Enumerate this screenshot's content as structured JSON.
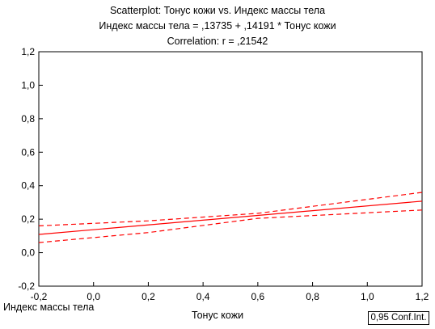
{
  "chart_data": {
    "type": "scatter",
    "title": "Scatterplot: Тонус кожи vs. Индекс массы тела",
    "subtitle": "Индекс массы тела = ,13735 + ,14191 * Тонус кожи",
    "correlation": "Correlation: r = ,21542",
    "xlabel": "Тонус кожи",
    "ylabel": "Индекс массы тела",
    "xlim": [
      -0.2,
      1.2
    ],
    "ylim": [
      -0.2,
      1.2
    ],
    "x_ticks": [
      "-0,2",
      "0,0",
      "0,2",
      "0,4",
      "0,6",
      "0,8",
      "1,0",
      "1,2"
    ],
    "y_ticks": [
      "-0,2",
      "0,0",
      "0,2",
      "0,4",
      "0,6",
      "0,8",
      "1,0",
      "1,2"
    ],
    "regression": {
      "intercept": 0.13735,
      "slope": 0.14191
    },
    "conf_band": {
      "x": [
        -0.2,
        0.2,
        0.6,
        1.2
      ],
      "upper": [
        0.16,
        0.19,
        0.235,
        0.36
      ],
      "lower": [
        0.06,
        0.12,
        0.205,
        0.255
      ]
    },
    "legend": "0,95 Conf.Int.",
    "line_color": "#ff0000",
    "grid": false
  }
}
